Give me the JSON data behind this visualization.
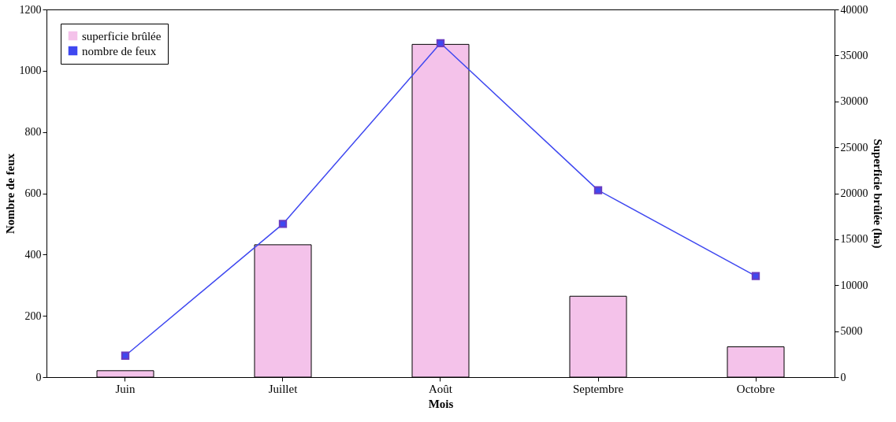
{
  "chart_data": {
    "type": "bar",
    "xlabel": "Mois",
    "ylabel": "Nombre de feux",
    "y2label": "Superficie brûlée (ha)",
    "categories": [
      "Juin",
      "Juillet",
      "Août",
      "Septembre",
      "Octobre"
    ],
    "series": [
      {
        "name": "superficie brûlée",
        "axis": "y2",
        "color": "#f4c2ea",
        "values": [
          700,
          14400,
          36200,
          8800,
          3300
        ]
      },
      {
        "name": "nombre de feux",
        "type": "line",
        "color": "#3f48f0",
        "values": [
          70,
          500,
          1090,
          610,
          330
        ]
      }
    ],
    "ylim": [
      0,
      1200
    ],
    "yticks": [
      0,
      200,
      400,
      600,
      800,
      1000,
      1200
    ],
    "y2lim": [
      0,
      40000
    ],
    "y2ticks": [
      0,
      5000,
      10000,
      15000,
      20000,
      25000,
      30000,
      35000,
      40000
    ],
    "marker": "square",
    "grid": false,
    "legend": "top left"
  }
}
